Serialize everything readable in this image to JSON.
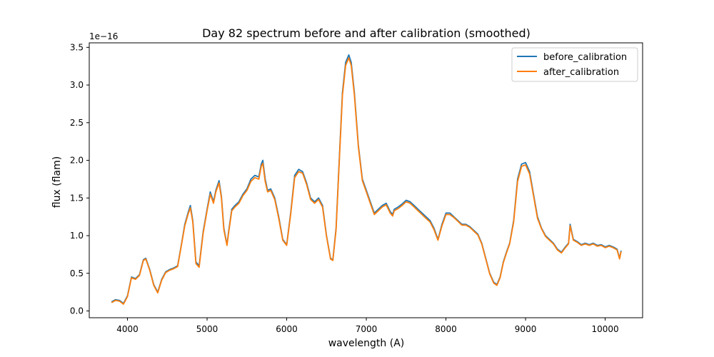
{
  "chart_data": {
    "type": "line",
    "title": "Day 82 spectrum before and after calibration (smoothed)",
    "xlabel": "wavelength (A)",
    "ylabel": "flux (flam)",
    "y_offset_label": "1e−16",
    "xlim": [
      3520,
      10470
    ],
    "ylim": [
      -0.09,
      3.56
    ],
    "xticks": [
      4000,
      5000,
      6000,
      7000,
      8000,
      9000,
      10000
    ],
    "xtick_labels": [
      "4000",
      "5000",
      "6000",
      "7000",
      "8000",
      "9000",
      "10000"
    ],
    "yticks": [
      0.0,
      0.5,
      1.0,
      1.5,
      2.0,
      2.5,
      3.0,
      3.5
    ],
    "ytick_labels": [
      "0.0",
      "0.5",
      "1.0",
      "1.5",
      "2.0",
      "2.5",
      "3.0",
      "3.5"
    ],
    "grid": false,
    "legend_position": "top-right",
    "x": [
      3800,
      3850,
      3900,
      3950,
      4000,
      4050,
      4100,
      4150,
      4200,
      4230,
      4280,
      4330,
      4380,
      4430,
      4480,
      4530,
      4580,
      4630,
      4680,
      4720,
      4760,
      4790,
      4820,
      4860,
      4900,
      4950,
      5000,
      5040,
      5080,
      5110,
      5150,
      5180,
      5210,
      5250,
      5270,
      5310,
      5350,
      5400,
      5450,
      5500,
      5550,
      5600,
      5650,
      5680,
      5700,
      5730,
      5760,
      5800,
      5850,
      5900,
      5950,
      6000,
      6050,
      6100,
      6150,
      6200,
      6250,
      6300,
      6350,
      6400,
      6450,
      6500,
      6550,
      6580,
      6620,
      6660,
      6700,
      6740,
      6780,
      6810,
      6850,
      6900,
      6950,
      7000,
      7050,
      7100,
      7150,
      7200,
      7250,
      7300,
      7330,
      7350,
      7400,
      7450,
      7500,
      7550,
      7600,
      7650,
      7700,
      7750,
      7800,
      7850,
      7900,
      7950,
      8000,
      8050,
      8100,
      8150,
      8200,
      8250,
      8300,
      8350,
      8400,
      8450,
      8500,
      8550,
      8600,
      8640,
      8680,
      8720,
      8760,
      8800,
      8850,
      8900,
      8950,
      9000,
      9050,
      9100,
      9150,
      9200,
      9250,
      9300,
      9350,
      9400,
      9450,
      9500,
      9540,
      9560,
      9600,
      9650,
      9700,
      9750,
      9800,
      9850,
      9900,
      9950,
      10000,
      10050,
      10100,
      10150,
      10180,
      10200
    ],
    "series": [
      {
        "name": "before_calibration",
        "color": "#1f77b4",
        "values": [
          0.12,
          0.15,
          0.14,
          0.1,
          0.2,
          0.45,
          0.43,
          0.48,
          0.68,
          0.7,
          0.55,
          0.35,
          0.25,
          0.42,
          0.52,
          0.55,
          0.57,
          0.6,
          0.9,
          1.15,
          1.3,
          1.4,
          1.2,
          0.65,
          0.6,
          1.05,
          1.35,
          1.58,
          1.45,
          1.6,
          1.73,
          1.52,
          1.1,
          0.88,
          1.05,
          1.35,
          1.4,
          1.45,
          1.55,
          1.62,
          1.75,
          1.8,
          1.78,
          1.95,
          2.0,
          1.75,
          1.6,
          1.62,
          1.5,
          1.25,
          0.95,
          0.88,
          1.3,
          1.8,
          1.88,
          1.85,
          1.7,
          1.5,
          1.45,
          1.5,
          1.4,
          1.0,
          0.7,
          0.68,
          1.1,
          2.0,
          2.9,
          3.3,
          3.4,
          3.3,
          2.9,
          2.2,
          1.75,
          1.6,
          1.45,
          1.3,
          1.35,
          1.4,
          1.43,
          1.32,
          1.28,
          1.35,
          1.38,
          1.42,
          1.47,
          1.45,
          1.4,
          1.35,
          1.3,
          1.25,
          1.2,
          1.1,
          0.95,
          1.15,
          1.3,
          1.3,
          1.25,
          1.2,
          1.15,
          1.15,
          1.12,
          1.07,
          1.02,
          0.9,
          0.7,
          0.5,
          0.38,
          0.35,
          0.45,
          0.65,
          0.78,
          0.9,
          1.2,
          1.75,
          1.95,
          1.97,
          1.85,
          1.55,
          1.25,
          1.1,
          1.0,
          0.95,
          0.9,
          0.82,
          0.78,
          0.85,
          0.9,
          1.15,
          0.95,
          0.92,
          0.88,
          0.9,
          0.88,
          0.9,
          0.87,
          0.88,
          0.85,
          0.87,
          0.85,
          0.82,
          0.7,
          0.8
        ]
      },
      {
        "name": "after_calibration",
        "color": "#ff7f0e",
        "values": [
          0.11,
          0.14,
          0.13,
          0.09,
          0.19,
          0.44,
          0.42,
          0.47,
          0.67,
          0.69,
          0.54,
          0.34,
          0.24,
          0.41,
          0.51,
          0.54,
          0.56,
          0.59,
          0.89,
          1.13,
          1.28,
          1.37,
          1.18,
          0.63,
          0.58,
          1.03,
          1.33,
          1.55,
          1.43,
          1.58,
          1.7,
          1.5,
          1.08,
          0.87,
          1.03,
          1.33,
          1.38,
          1.43,
          1.53,
          1.6,
          1.72,
          1.77,
          1.75,
          1.92,
          1.96,
          1.72,
          1.58,
          1.6,
          1.48,
          1.23,
          0.94,
          0.87,
          1.28,
          1.77,
          1.85,
          1.83,
          1.68,
          1.48,
          1.43,
          1.48,
          1.38,
          0.99,
          0.69,
          0.67,
          1.08,
          1.97,
          2.86,
          3.26,
          3.36,
          3.26,
          2.87,
          2.18,
          1.73,
          1.58,
          1.43,
          1.28,
          1.33,
          1.38,
          1.41,
          1.3,
          1.26,
          1.33,
          1.36,
          1.4,
          1.45,
          1.43,
          1.38,
          1.33,
          1.28,
          1.23,
          1.18,
          1.08,
          0.94,
          1.13,
          1.28,
          1.28,
          1.24,
          1.19,
          1.14,
          1.14,
          1.11,
          1.06,
          1.01,
          0.89,
          0.69,
          0.49,
          0.37,
          0.34,
          0.44,
          0.64,
          0.77,
          0.89,
          1.18,
          1.72,
          1.92,
          1.94,
          1.82,
          1.53,
          1.23,
          1.09,
          0.99,
          0.94,
          0.89,
          0.81,
          0.77,
          0.84,
          0.89,
          1.13,
          0.94,
          0.91,
          0.87,
          0.89,
          0.87,
          0.89,
          0.86,
          0.87,
          0.84,
          0.86,
          0.84,
          0.81,
          0.69,
          0.79
        ]
      }
    ]
  }
}
